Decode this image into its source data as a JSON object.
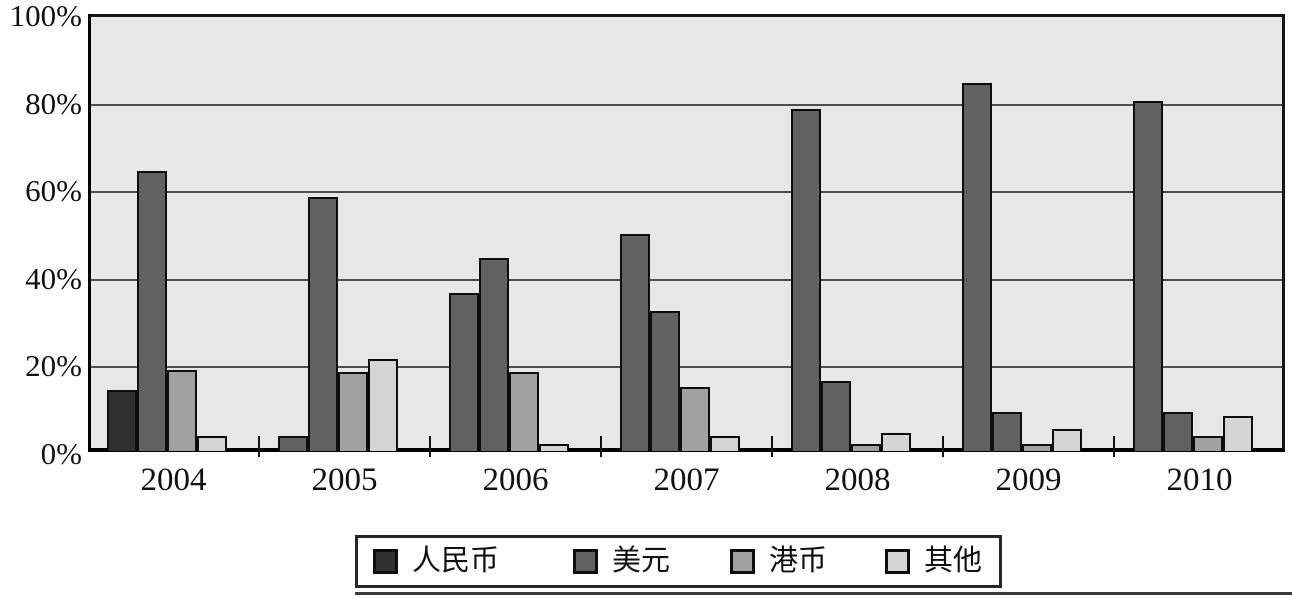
{
  "chart_data": {
    "type": "bar",
    "title": "",
    "categories": [
      "2004",
      "2005",
      "2006",
      "2007",
      "2008",
      "2009",
      "2010"
    ],
    "series": [
      {
        "name": "人民币",
        "color": "#2f2f2f",
        "values": [
          14,
          3.5,
          36,
          49.5,
          78,
          84,
          80
        ],
        "bar_colors": [
          "#2f2f2f",
          "#616161",
          "#616161",
          "#616161",
          "#616161",
          "#616161",
          "#616161"
        ]
      },
      {
        "name": "美元",
        "color": "#616161",
        "values": [
          64,
          58,
          44,
          32,
          16,
          9,
          9
        ]
      },
      {
        "name": "港币",
        "color": "#a1a1a1",
        "values": [
          18.5,
          18,
          18,
          14.5,
          1.5,
          1.5,
          3.5
        ]
      },
      {
        "name": "其他",
        "color": "#d4d4d4",
        "values": [
          3.5,
          21,
          1.5,
          3.5,
          4,
          5,
          8
        ]
      }
    ],
    "xlabel": "",
    "ylabel": "",
    "ylim": [
      0,
      100
    ],
    "ytick_labels": [
      "0%",
      "20%",
      "40%",
      "60%",
      "80%",
      "100%"
    ],
    "grid": true,
    "gridline_step_percent": 20,
    "legend_position": "bottom"
  },
  "colors": {
    "plot_bg": "#e7e7e7",
    "frame": "#161616",
    "gridline": "#4f4f4f",
    "bar_border": "#0d0d0d",
    "text": "#111111",
    "legend_bg": "#ffffff",
    "bottom_rule": "#3a3a3a"
  }
}
